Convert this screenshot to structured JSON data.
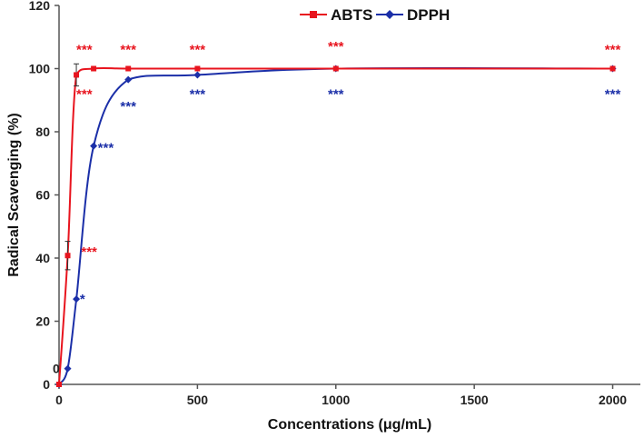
{
  "chart_data": {
    "type": "line",
    "title": "",
    "xlabel": "Concentrations (μg/mL)",
    "ylabel": "Radical Scavenging (%)",
    "xlim": [
      0,
      2100
    ],
    "ylim": [
      0,
      120
    ],
    "xticks": [
      0,
      500,
      1000,
      1500,
      2000
    ],
    "yticks": [
      0,
      20,
      40,
      60,
      80,
      100,
      120
    ],
    "legend_position": "top-center",
    "series": [
      {
        "name": "ABTS",
        "color": "#e8141e",
        "marker": "square",
        "x": [
          0,
          31.25,
          62.5,
          125,
          250,
          500,
          1000,
          2000
        ],
        "y": [
          0,
          40.8,
          98,
          100,
          100,
          100,
          100,
          100
        ],
        "errors": [
          0,
          4.5,
          3.5,
          0,
          0,
          0,
          0,
          0
        ]
      },
      {
        "name": "DPPH",
        "color": "#1b2fa8",
        "marker": "diamond",
        "x": [
          0,
          31.25,
          62.5,
          125,
          250,
          500,
          1000,
          2000
        ],
        "y": [
          0,
          5,
          27,
          75.5,
          96.5,
          98,
          100,
          100
        ],
        "errors": [
          0,
          0,
          0,
          0,
          0,
          0,
          0,
          0
        ]
      }
    ],
    "annotations": [
      {
        "series": "ABTS",
        "text": "***",
        "x": 62.5,
        "y": 106
      },
      {
        "series": "ABTS",
        "text": "***",
        "x": 62.5,
        "y": 92
      },
      {
        "series": "ABTS",
        "text": "***",
        "x": 250,
        "y": 106
      },
      {
        "series": "ABTS",
        "text": "***",
        "x": 500,
        "y": 106
      },
      {
        "series": "ABTS",
        "text": "***",
        "x": 1000,
        "y": 107
      },
      {
        "series": "ABTS",
        "text": "***",
        "x": 2000,
        "y": 106
      },
      {
        "series": "ABTS",
        "text": "***",
        "x": 80,
        "y": 42
      },
      {
        "series": "DPPH",
        "text": "*",
        "x": 75,
        "y": 27
      },
      {
        "series": "DPPH",
        "text": "***",
        "x": 140,
        "y": 75
      },
      {
        "series": "DPPH",
        "text": "***",
        "x": 250,
        "y": 88
      },
      {
        "series": "DPPH",
        "text": "***",
        "x": 500,
        "y": 92
      },
      {
        "series": "DPPH",
        "text": "***",
        "x": 1000,
        "y": 92
      },
      {
        "series": "DPPH",
        "text": "***",
        "x": 2000,
        "y": 92
      }
    ],
    "extra_labels": [
      {
        "text": "0",
        "x": 0,
        "y": 5,
        "color": "#1b2fa8"
      }
    ]
  }
}
